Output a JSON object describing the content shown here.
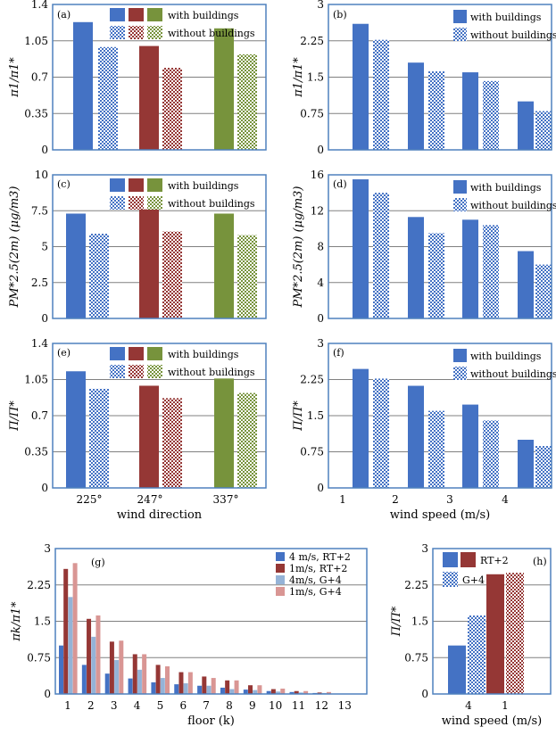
{
  "colors": {
    "blue": "#4472c4",
    "red": "#953735",
    "green": "#77933c",
    "blue_light": "#95b3d7",
    "red_light": "#d99694",
    "green_light": "#c3d69b",
    "axis": "#4f81bd",
    "grid": "#808080"
  },
  "chart_data": [
    {
      "id": "a",
      "type": "bar",
      "tag": "(a)",
      "categories": [
        "225°",
        "247°",
        "337°"
      ],
      "series": [
        {
          "name": "with buildings",
          "values": [
            1.23,
            1.0,
            1.17
          ]
        },
        {
          "name": "without buildings",
          "values": [
            0.99,
            0.79,
            0.92
          ]
        }
      ],
      "ylabel": "π1/π1*",
      "ylim": [
        0,
        1.4
      ],
      "yticks": [
        "0",
        "0.35",
        "0.7",
        "1.05",
        "1.4"
      ],
      "legend": [
        "with buildings",
        "without buildings"
      ]
    },
    {
      "id": "b",
      "type": "bar",
      "tag": "(b)",
      "categories": [
        "1",
        "2",
        "3",
        "4"
      ],
      "series": [
        {
          "name": "with buildings",
          "values": [
            2.6,
            1.8,
            1.6,
            1.0
          ]
        },
        {
          "name": "without buildings",
          "values": [
            2.27,
            1.62,
            1.42,
            0.8
          ]
        }
      ],
      "ylabel": "π1/π1*",
      "ylim": [
        0,
        3
      ],
      "yticks": [
        "0",
        "0.75",
        "1.5",
        "2.25",
        "3"
      ],
      "legend": [
        "with buildings",
        "without buildings"
      ]
    },
    {
      "id": "c",
      "type": "bar",
      "tag": "(c)",
      "categories": [
        "225°",
        "247°",
        "337°"
      ],
      "series": [
        {
          "name": "with buildings",
          "values": [
            7.3,
            7.6,
            7.3
          ]
        },
        {
          "name": "without buildings",
          "values": [
            5.9,
            6.05,
            5.8
          ]
        }
      ],
      "ylabel": "PM*2.5(2m) (μg/m3)",
      "ylim": [
        0,
        10
      ],
      "yticks": [
        "0",
        "2.5",
        "5",
        "7.5",
        "10"
      ],
      "legend": [
        "with buildings",
        "without buildings"
      ]
    },
    {
      "id": "d",
      "type": "bar",
      "tag": "(d)",
      "categories": [
        "1",
        "2",
        "3",
        "4"
      ],
      "series": [
        {
          "name": "with buildings",
          "values": [
            15.5,
            11.3,
            11.0,
            7.5
          ]
        },
        {
          "name": "without buildings",
          "values": [
            14.0,
            9.5,
            10.4,
            6.0
          ]
        }
      ],
      "ylabel": "PM*2.5(2m) (μg/m3)",
      "ylim": [
        0,
        16
      ],
      "yticks": [
        "0",
        "4",
        "8",
        "12",
        "16"
      ],
      "legend": [
        "with buildings",
        "without buildings"
      ]
    },
    {
      "id": "e",
      "type": "bar",
      "tag": "(e)",
      "categories": [
        "225°",
        "247°",
        "337°"
      ],
      "series": [
        {
          "name": "with buildings",
          "values": [
            1.13,
            0.99,
            1.06
          ]
        },
        {
          "name": "without buildings",
          "values": [
            0.96,
            0.87,
            0.92
          ]
        }
      ],
      "ylabel": "Π/Π*",
      "xlabel": "wind direction",
      "ylim": [
        0,
        1.4
      ],
      "yticks": [
        "0",
        "0.35",
        "0.7",
        "1.05",
        "1.4"
      ],
      "legend": [
        "with buildings",
        "without buildings"
      ]
    },
    {
      "id": "f",
      "type": "bar",
      "tag": "(f)",
      "categories": [
        "1",
        "2",
        "3",
        "4"
      ],
      "series": [
        {
          "name": "with buildings",
          "values": [
            2.47,
            2.12,
            1.73,
            1.0
          ]
        },
        {
          "name": "without buildings",
          "values": [
            2.27,
            1.6,
            1.4,
            0.87
          ]
        }
      ],
      "ylabel": "Π/Π*",
      "xlabel": "wind speed (m/s)",
      "ylim": [
        0,
        3
      ],
      "yticks": [
        "0",
        "0.75",
        "1.5",
        "2.25",
        "3"
      ],
      "legend": [
        "with buildings",
        "without buildings"
      ]
    },
    {
      "id": "g",
      "type": "bar",
      "tag": "(g)",
      "categories": [
        "1",
        "2",
        "3",
        "4",
        "5",
        "6",
        "7",
        "8",
        "9",
        "10",
        "11",
        "12",
        "13"
      ],
      "series": [
        {
          "name": "4 m/s, RT+2",
          "values": [
            1.0,
            0.6,
            0.42,
            0.32,
            0.24,
            0.2,
            0.17,
            0.13,
            0.09,
            0.06,
            0.04,
            0.02,
            0
          ]
        },
        {
          "name": "1m/s, RT+2",
          "values": [
            2.58,
            1.55,
            1.08,
            0.82,
            0.6,
            0.45,
            0.36,
            0.28,
            0.18,
            0.1,
            0.06,
            0.03,
            0
          ]
        },
        {
          "name": "4m/s, G+4",
          "values": [
            2.0,
            1.18,
            0.7,
            0.5,
            0.33,
            0.22,
            0.17,
            0.1,
            0.08,
            0.05,
            0.03,
            0.02,
            0
          ]
        },
        {
          "name": "1m/s, G+4",
          "values": [
            2.7,
            1.62,
            1.1,
            0.82,
            0.57,
            0.45,
            0.33,
            0.28,
            0.18,
            0.11,
            0.06,
            0.04,
            0
          ]
        }
      ],
      "ylabel": "πk/π1*",
      "xlabel": "floor (k)",
      "ylim": [
        0,
        3
      ],
      "yticks": [
        "0",
        "0.75",
        "1.5",
        "2.25",
        "3"
      ],
      "legend": [
        "4 m/s, RT+2",
        "1m/s, RT+2",
        "4m/s, G+4",
        "1m/s, G+4"
      ]
    },
    {
      "id": "h",
      "type": "bar",
      "tag": "(h)",
      "categories": [
        "4",
        "1"
      ],
      "series": [
        {
          "name": "RT+2",
          "values": [
            1.0,
            2.47
          ]
        },
        {
          "name": "G+4",
          "values": [
            1.62,
            2.5
          ]
        }
      ],
      "ylabel": "Π/Π*",
      "xlabel": "wind speed (m/s)",
      "ylim": [
        0,
        3
      ],
      "yticks": [
        "0",
        "0.75",
        "1.5",
        "2.25",
        "3"
      ],
      "legend": [
        "RT+2",
        "G+4"
      ]
    }
  ]
}
